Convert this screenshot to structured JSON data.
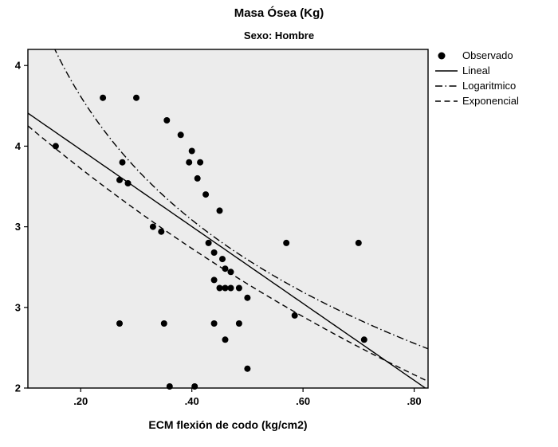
{
  "title": "Masa Ósea (Kg)",
  "subtitle": "Sexo: Hombre",
  "xlabel": "ECM flexión de codo (kg/cm2)",
  "colors": {
    "plot_bg": "#ececec",
    "frame": "#000000",
    "marker": "#000000",
    "line": "#000000",
    "page_bg": "#ffffff"
  },
  "legend": {
    "items": [
      {
        "label": "Observado",
        "marker": "dot"
      },
      {
        "label": "Lineal",
        "marker": "solid-line"
      },
      {
        "label": "Logaritmico",
        "marker": "dashdot-line"
      },
      {
        "label": "Exponencial",
        "marker": "dashed-line"
      }
    ]
  },
  "chart_data": {
    "type": "scatter",
    "title": "Masa Ósea (Kg)",
    "subtitle": "Sexo: Hombre",
    "xlabel": "ECM flexión de codo (kg/cm2)",
    "ylabel": "",
    "xlim": [
      0.105,
      0.825
    ],
    "ylim": [
      2.0,
      4.1
    ],
    "grid": false,
    "legend_position": "top-right-outside",
    "x_ticks": [
      {
        "value": 0.2,
        "label": ".20"
      },
      {
        "value": 0.4,
        "label": ".40"
      },
      {
        "value": 0.6,
        "label": ".60"
      },
      {
        "value": 0.8,
        "label": ".80"
      }
    ],
    "y_ticks": [
      {
        "value": 2.0,
        "label": "2"
      },
      {
        "value": 2.5,
        "label": "3"
      },
      {
        "value": 3.0,
        "label": "3"
      },
      {
        "value": 3.5,
        "label": "4"
      },
      {
        "value": 4.0,
        "label": "4"
      }
    ],
    "series_name": "Observado",
    "points": [
      [
        0.155,
        3.5
      ],
      [
        0.24,
        3.8
      ],
      [
        0.3,
        3.8
      ],
      [
        0.355,
        3.66
      ],
      [
        0.38,
        3.57
      ],
      [
        0.4,
        3.47
      ],
      [
        0.275,
        3.4
      ],
      [
        0.395,
        3.4
      ],
      [
        0.415,
        3.4
      ],
      [
        0.27,
        3.29
      ],
      [
        0.285,
        3.27
      ],
      [
        0.41,
        3.3
      ],
      [
        0.425,
        3.2
      ],
      [
        0.45,
        3.1
      ],
      [
        0.33,
        3.0
      ],
      [
        0.345,
        2.97
      ],
      [
        0.43,
        2.9
      ],
      [
        0.44,
        2.84
      ],
      [
        0.455,
        2.8
      ],
      [
        0.46,
        2.74
      ],
      [
        0.47,
        2.72
      ],
      [
        0.44,
        2.67
      ],
      [
        0.45,
        2.62
      ],
      [
        0.46,
        2.62
      ],
      [
        0.47,
        2.62
      ],
      [
        0.485,
        2.62
      ],
      [
        0.5,
        2.56
      ],
      [
        0.27,
        2.4
      ],
      [
        0.35,
        2.4
      ],
      [
        0.44,
        2.4
      ],
      [
        0.485,
        2.4
      ],
      [
        0.46,
        2.3
      ],
      [
        0.57,
        2.9
      ],
      [
        0.585,
        2.45
      ],
      [
        0.7,
        2.9
      ],
      [
        0.71,
        2.3
      ],
      [
        0.36,
        2.01
      ],
      [
        0.405,
        2.01
      ],
      [
        0.5,
        2.12
      ]
    ],
    "fits": [
      {
        "name": "lineal",
        "label": "Lineal",
        "type": "linear",
        "a": 3.955,
        "b": -2.384,
        "line": "solid"
      },
      {
        "name": "logaritmico",
        "label": "Logaritmico",
        "type": "log",
        "a": 2.031,
        "b": -1.104,
        "line": "dashdot"
      },
      {
        "name": "exponencial",
        "label": "Exponencial",
        "type": "exp",
        "a": 3.943,
        "b": -0.798,
        "line": "dashed"
      }
    ]
  }
}
